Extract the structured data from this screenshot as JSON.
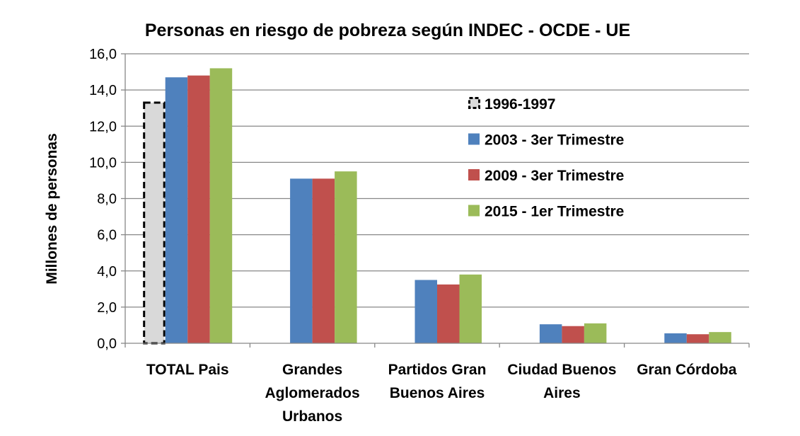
{
  "chart_data": {
    "type": "bar",
    "title": "Personas en riesgo de pobreza según INDEC - OCDE - UE",
    "ylabel": "Millones de personas",
    "xlabel": "",
    "ylim": [
      0,
      16
    ],
    "ytick_values": [
      0,
      2,
      4,
      6,
      8,
      10,
      12,
      14,
      16
    ],
    "ytick_labels": [
      "0,0",
      "2,0",
      "4,0",
      "6,0",
      "8,0",
      "10,0",
      "12,0",
      "14,0",
      "16,0"
    ],
    "grid": true,
    "legend_position": "right",
    "categories": [
      [
        "TOTAL Pais"
      ],
      [
        "Grandes",
        "Aglomerados",
        "Urbanos"
      ],
      [
        "Partidos Gran",
        "Buenos Aires"
      ],
      [
        "Ciudad Buenos",
        "Aires"
      ],
      [
        "Gran Córdoba"
      ]
    ],
    "series": [
      {
        "name": "1996-1997",
        "color": "#d9d9d9",
        "style": "dashed-outline",
        "values": [
          13.3,
          null,
          null,
          null,
          null
        ]
      },
      {
        "name": "2003 - 3er Trimestre",
        "color": "#4f81bd",
        "values": [
          14.7,
          9.1,
          3.5,
          1.05,
          0.55
        ]
      },
      {
        "name": "2009 - 3er Trimestre",
        "color": "#c0504d",
        "values": [
          14.8,
          9.1,
          3.25,
          0.95,
          0.5
        ]
      },
      {
        "name": "2015 - 1er Trimestre",
        "color": "#9bbb59",
        "values": [
          15.2,
          9.5,
          3.8,
          1.1,
          0.62
        ]
      }
    ]
  }
}
